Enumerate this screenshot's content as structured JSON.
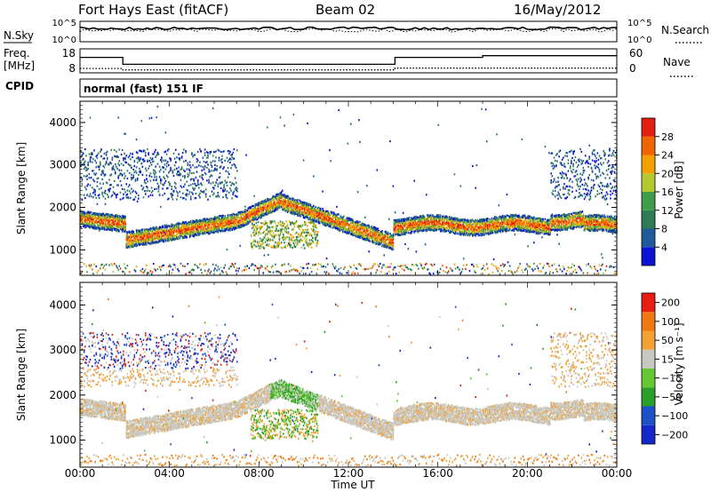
{
  "header": {
    "title": "Fort Hays East (fitACF)",
    "beam": "Beam 02",
    "date": "16/May/2012"
  },
  "panel_labels": {
    "nsky": "N.Sky",
    "nsearch": "N.Search",
    "freq": "Freq.",
    "freq_unit": "[MHz]",
    "nave": "Nave",
    "cpid": "CPID",
    "cpid_value": "normal (fast) 151 IF",
    "noise_tick_high": "10^5",
    "noise_tick_low": "10^0",
    "freq_ticks": [
      "18",
      "8"
    ],
    "nave_ticks": [
      "60",
      "0"
    ]
  },
  "colors": {
    "power_scale": [
      "#0a14d2",
      "#1f5a9b",
      "#2f7b55",
      "#3f9c4a",
      "#b4c832",
      "#f5a000",
      "#f06400",
      "#e11e0f"
    ],
    "velocity_scale": [
      "#1428c8",
      "#1e50c8",
      "#28a028",
      "#64c832",
      "#c8c8c0",
      "#f5a032",
      "#f07814",
      "#e61e14"
    ]
  },
  "chart_data": [
    {
      "type": "line",
      "panel": "noise",
      "title": "",
      "series": [
        {
          "name": "N.Sky",
          "style": "solid"
        },
        {
          "name": "N.Search",
          "style": "dotted"
        }
      ]
    },
    {
      "type": "line",
      "panel": "frequency",
      "series": [
        {
          "name": "Freq. [MHz]",
          "style": "solid",
          "points": [
            [
              "00:00",
              15
            ],
            [
              "01:55",
              15
            ],
            [
              "01:55",
              11
            ],
            [
              "14:05",
              11
            ],
            [
              "14:05",
              15
            ],
            [
              "18:00",
              15
            ],
            [
              "18:00",
              16
            ],
            [
              "24:00",
              16
            ]
          ]
        },
        {
          "name": "Nave",
          "style": "dotted",
          "points": [
            [
              "00:00",
              12
            ],
            [
              "01:55",
              12
            ],
            [
              "01:55",
              8
            ],
            [
              "14:05",
              8
            ],
            [
              "14:05",
              13
            ],
            [
              "24:00",
              13
            ]
          ]
        }
      ]
    },
    {
      "type": "heatmap",
      "panel": "power",
      "xlabel": "",
      "ylabel": "Slant Range [km]",
      "y_ticks": [
        "1000",
        "2000",
        "3000",
        "4000"
      ],
      "ylim": [
        400,
        4500
      ],
      "colorbar_label": "Power [dB]",
      "colorbar_ticks": [
        "4",
        "8",
        "12",
        "16",
        "20",
        "24",
        "28"
      ],
      "colorbar_range": [
        0,
        30
      ]
    },
    {
      "type": "heatmap",
      "panel": "velocity",
      "xlabel": "Time UT",
      "ylabel": "Slant Range [km]",
      "x_ticks": [
        "00:00",
        "04:00",
        "08:00",
        "12:00",
        "16:00",
        "20:00",
        "00:00"
      ],
      "xlim_hours": [
        0,
        24
      ],
      "y_ticks": [
        "1000",
        "2000",
        "3000",
        "4000"
      ],
      "ylim": [
        400,
        4500
      ],
      "colorbar_label": "Velocity [m s⁻¹]",
      "colorbar_ticks": [
        "200",
        "100",
        "50",
        "15",
        "−15",
        "−50",
        "−100",
        "−200"
      ]
    }
  ]
}
